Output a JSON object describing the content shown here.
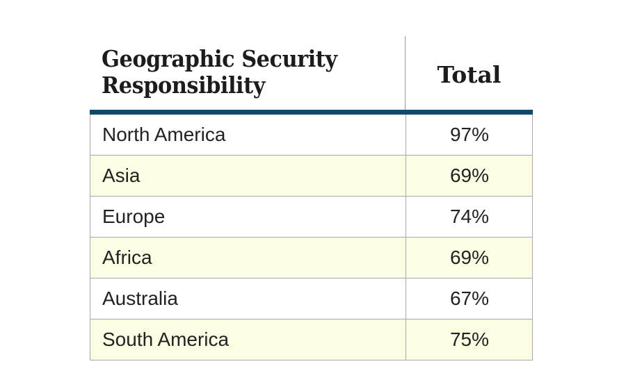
{
  "table": {
    "header": {
      "column1": "Geographic Security Responsibility",
      "column2": "Total"
    },
    "accent_color": "#0f4a6e",
    "stripe_color": "#fdfde3",
    "rows": [
      {
        "region": "North America",
        "total": "97%"
      },
      {
        "region": "Asia",
        "total": "69%"
      },
      {
        "region": "Europe",
        "total": "74%"
      },
      {
        "region": "Africa",
        "total": "69%"
      },
      {
        "region": "Australia",
        "total": "67%"
      },
      {
        "region": "South America",
        "total": "75%"
      }
    ]
  }
}
